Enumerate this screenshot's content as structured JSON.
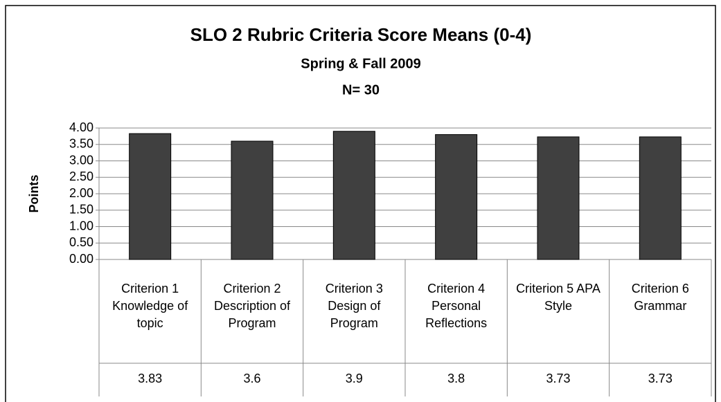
{
  "chart_data": {
    "type": "bar",
    "title": "SLO 2 Rubric Criteria Score Means (0-4)",
    "subtitle": "Spring & Fall 2009",
    "annotation": "N= 30",
    "y_label": "Points",
    "categories": [
      "Criterion 1 Knowledge of topic",
      "Criterion 2 Description of Program",
      "Criterion 3 Design of Program",
      "Criterion 4 Personal Reflections",
      "Criterion 5 APA Style",
      "Criterion 6 Grammar"
    ],
    "values": [
      3.83,
      3.6,
      3.9,
      3.8,
      3.73,
      3.73
    ],
    "color": "#404040",
    "ylim": [
      0,
      4
    ],
    "yticks": [
      {
        "value": 0,
        "label": "0.00"
      },
      {
        "value": 0.5,
        "label": "0.50"
      },
      {
        "value": 1,
        "label": "1.00"
      },
      {
        "value": 1.5,
        "label": "1.50"
      },
      {
        "value": 2,
        "label": "2.00"
      },
      {
        "value": 2.5,
        "label": "2.50"
      },
      {
        "value": 3,
        "label": "3.00"
      },
      {
        "value": 3.5,
        "label": "3.50"
      },
      {
        "value": 4,
        "label": "4.00"
      }
    ],
    "grid": true
  }
}
